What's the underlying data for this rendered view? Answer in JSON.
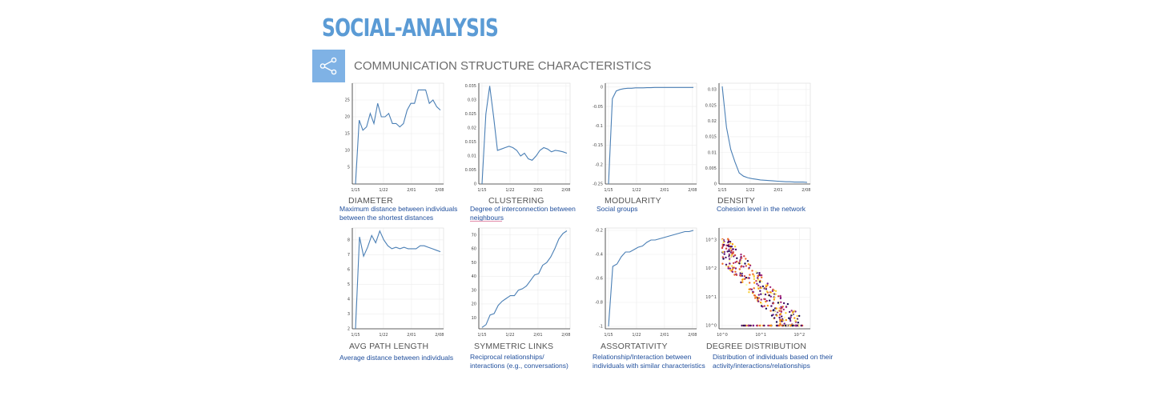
{
  "header": {
    "title": "SOCIAL-ANALYSIS",
    "section_title": "COMMUNICATION STRUCTURE CHARACTERISTICS",
    "share_icon": "share-icon"
  },
  "colors": {
    "line": "#4a7fb5",
    "title": "#5b9bd5",
    "desc": "#1f4e9c"
  },
  "panels": [
    {
      "label": "DIAMETER",
      "desc1": "Maximum distance between individuals",
      "desc2": "between the shortest distances"
    },
    {
      "label": "CLUSTERING",
      "desc1": "Degree of interconnection between",
      "desc2": "neighbours"
    },
    {
      "label": "MODULARITY",
      "desc1": "Social groups",
      "desc2": ""
    },
    {
      "label": "DENSITY",
      "desc1": "Cohesion level in the network",
      "desc2": ""
    },
    {
      "label": "AVG PATH LENGTH",
      "desc1": "Average distance between individuals",
      "desc2": ""
    },
    {
      "label": "SYMMETRIC LINKS",
      "desc1": "Reciprocal relationships/",
      "desc2": "interactions (e.g., conversations)"
    },
    {
      "label": "ASSORTATIVITY",
      "desc1": "Relationship/Interaction between",
      "desc2": "individuals with similar characteristics"
    },
    {
      "label": "DEGREE DISTRIBUTION",
      "desc1": "Distribution of individuals based on their",
      "desc2": "activity/interactions/relationships"
    }
  ],
  "chart_data": [
    {
      "type": "line",
      "title": "DIAMETER",
      "x_ticks": [
        "1/15",
        "1/22",
        "2/01",
        "2/08"
      ],
      "y_ticks": [
        "5",
        "10",
        "15",
        "20",
        "25"
      ],
      "ylim": [
        0,
        30
      ],
      "values": [
        0,
        19,
        16,
        17,
        21,
        18,
        24,
        20,
        20,
        21,
        18,
        18,
        17,
        18,
        22,
        24,
        24,
        28,
        28,
        28,
        24,
        25,
        23,
        22
      ]
    },
    {
      "type": "line",
      "title": "CLUSTERING",
      "x_ticks": [
        "1/15",
        "1/22",
        "2/01",
        "2/08"
      ],
      "y_ticks": [
        "0",
        "0.005",
        "0.01",
        "0.015",
        "0.02",
        "0.025",
        "0.03",
        "0.035"
      ],
      "ylim": [
        0,
        0.036
      ],
      "values": [
        0,
        0.025,
        0.035,
        0.024,
        0.012,
        0.0125,
        0.013,
        0.0135,
        0.013,
        0.012,
        0.01,
        0.011,
        0.009,
        0.0085,
        0.01,
        0.012,
        0.013,
        0.0125,
        0.0115,
        0.012,
        0.0118,
        0.0115,
        0.011
      ]
    },
    {
      "type": "line",
      "title": "MODULARITY",
      "x_ticks": [
        "1/15",
        "1/22",
        "2/01",
        "2/08"
      ],
      "y_ticks": [
        "-0.25",
        "-0.2",
        "-0.15",
        "-0.1",
        "-0.05",
        "0"
      ],
      "ylim": [
        -0.25,
        0.01
      ],
      "values": [
        -0.25,
        -0.03,
        -0.01,
        -0.006,
        -0.004,
        -0.003,
        -0.003,
        -0.002,
        -0.002,
        -0.002,
        -0.0015,
        -0.0015,
        -0.001,
        -0.001,
        -0.001,
        -0.001,
        -0.001,
        -0.001,
        -0.001,
        -0.001,
        -0.001,
        -0.001,
        -0.001
      ]
    },
    {
      "type": "line",
      "title": "DENSITY",
      "x_ticks": [
        "1/15",
        "1/22",
        "2/01",
        "2/08"
      ],
      "y_ticks": [
        "0",
        "0.005",
        "0.01",
        "0.015",
        "0.02",
        "0.025",
        "0.03"
      ],
      "ylim": [
        0,
        0.032
      ],
      "values": [
        0.031,
        0.018,
        0.011,
        0.007,
        0.0035,
        0.0025,
        0.002,
        0.0017,
        0.0015,
        0.0013,
        0.0012,
        0.0011,
        0.001,
        0.0009,
        0.0008,
        0.0007,
        0.0007,
        0.0006,
        0.0006,
        0.0006,
        0.0005
      ]
    },
    {
      "type": "line",
      "title": "AVG PATH LENGTH",
      "x_ticks": [
        "1/15",
        "1/22",
        "2/01",
        "2/08"
      ],
      "y_ticks": [
        "2",
        "3",
        "4",
        "5",
        "6",
        "7",
        "8"
      ],
      "ylim": [
        2,
        8.8
      ],
      "values": [
        2,
        8.2,
        6.9,
        7.5,
        8.3,
        7.8,
        8.6,
        8.0,
        7.6,
        7.4,
        7.5,
        7.4,
        7.5,
        7.4,
        7.4,
        7.4,
        7.6,
        7.6,
        7.5,
        7.4,
        7.3,
        7.2
      ]
    },
    {
      "type": "line",
      "title": "SYMMETRIC LINKS",
      "x_ticks": [
        "1/15",
        "1/22",
        "2/01",
        "2/08"
      ],
      "y_ticks": [
        "10",
        "20",
        "30",
        "40",
        "50",
        "60",
        "70"
      ],
      "ylim": [
        2,
        75
      ],
      "values": [
        3,
        5,
        12,
        13,
        19,
        22,
        24,
        26,
        26,
        30,
        31,
        33,
        37,
        41,
        42,
        48,
        50,
        54,
        60,
        67,
        71,
        73
      ]
    },
    {
      "type": "line",
      "title": "ASSORTATIVITY",
      "x_ticks": [
        "1/15",
        "1/22",
        "2/01",
        "2/08"
      ],
      "y_ticks": [
        "-1",
        "-0.8",
        "-0.6",
        "-0.4",
        "-0.2"
      ],
      "ylim": [
        -1.02,
        -0.18
      ],
      "values": [
        -1,
        -0.5,
        -0.48,
        -0.42,
        -0.38,
        -0.38,
        -0.36,
        -0.34,
        -0.33,
        -0.3,
        -0.28,
        -0.28,
        -0.27,
        -0.26,
        -0.25,
        -0.24,
        -0.23,
        -0.22,
        -0.21,
        -0.21,
        -0.2
      ]
    },
    {
      "type": "scatter",
      "title": "DEGREE DISTRIBUTION",
      "scale": "log-log",
      "x_ticks": [
        "10^0",
        "10^1",
        "10^2"
      ],
      "y_ticks": [
        "10^0",
        "10^1",
        "10^2",
        "10^3"
      ]
    }
  ]
}
